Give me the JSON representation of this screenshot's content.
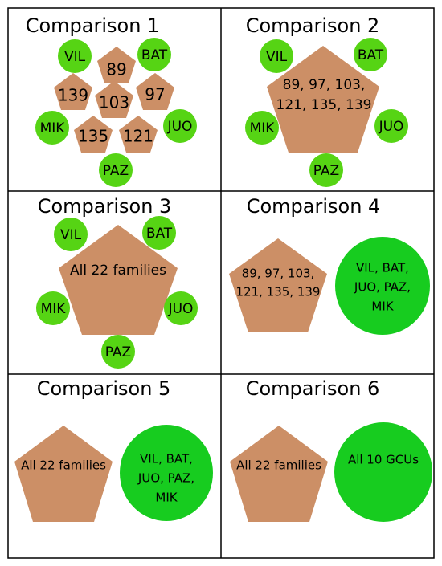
{
  "colors": {
    "pentagon_fill": "#cc8f66",
    "circle_fill": "#56d414",
    "circle_fill_large": "#17cc1f",
    "grid_line": "#000000"
  },
  "panels": [
    {
      "title": "Comparison 1",
      "pentagons": [
        "89",
        "139",
        "103",
        "97",
        "135",
        "121"
      ],
      "circles": [
        "VIL",
        "BAT",
        "MIK",
        "JUO",
        "PAZ"
      ]
    },
    {
      "title": "Comparison 2",
      "pentagon_lines": [
        "89, 97, 103,",
        "121, 135, 139"
      ],
      "circles": [
        "VIL",
        "BAT",
        "MIK",
        "JUO",
        "PAZ"
      ]
    },
    {
      "title": "Comparison 3",
      "pentagon_lines": [
        "All 22 families"
      ],
      "circles": [
        "VIL",
        "BAT",
        "MIK",
        "JUO",
        "PAZ"
      ]
    },
    {
      "title": "Comparison 4",
      "pentagon_lines": [
        "89, 97, 103,",
        "121, 135, 139"
      ],
      "circle_lines": [
        "VIL, BAT,",
        "JUO, PAZ,",
        "MIK"
      ]
    },
    {
      "title": "Comparison 5",
      "pentagon_lines": [
        "All 22 families"
      ],
      "circle_lines": [
        "VIL, BAT,",
        "JUO, PAZ,",
        "MIK"
      ]
    },
    {
      "title": "Comparison 6",
      "pentagon_lines": [
        "All 22 families"
      ],
      "circle_lines": [
        "All 10 GCUs"
      ]
    }
  ]
}
